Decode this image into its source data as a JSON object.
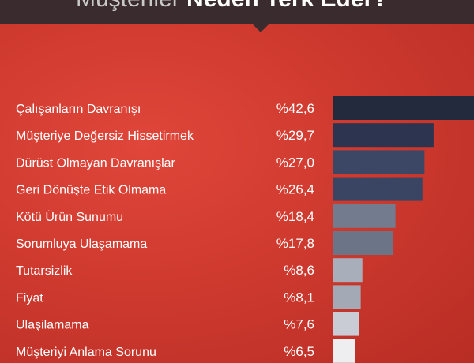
{
  "header": {
    "title_light": "Müşteriler",
    "title_bold": "Neden Terk Eder?"
  },
  "colors": {
    "background": "#cf3a2f",
    "header_band": "#3a2c2e",
    "bar_colors": [
      "#242a3d",
      "#2c3450",
      "#3c4766",
      "#3a4563",
      "#737b8e",
      "#6c7488",
      "#a9aebb",
      "#a4a9b6",
      "#c9ccd4",
      "#eeeef1"
    ]
  },
  "chart_data": {
    "type": "bar",
    "orientation": "horizontal",
    "categories": [
      "Çalışanların Davranışı",
      "Müşteriye Değersiz Hissetirmek",
      "Dürüst Olmayan Davranışlar",
      "Geri Dönüşte Etik Olmama",
      "Kötü Ürün Sunumu",
      "Sorumluya Ulaşamama",
      "Tutarsizlik",
      "Fiyat",
      "Ulaşilamama",
      "Müşteriyi Anlama Sorunu"
    ],
    "values": [
      42.6,
      29.7,
      27.0,
      26.4,
      18.4,
      17.8,
      8.6,
      8.1,
      7.6,
      6.5
    ],
    "value_labels": [
      "%42,6",
      "%29,7",
      "%27,0",
      "%26,4",
      "%18,4",
      "%17,8",
      "%8,6",
      "%8,1",
      "%7,6",
      "%6,5"
    ],
    "unit": "%",
    "xlim": [
      0,
      42.6
    ]
  }
}
